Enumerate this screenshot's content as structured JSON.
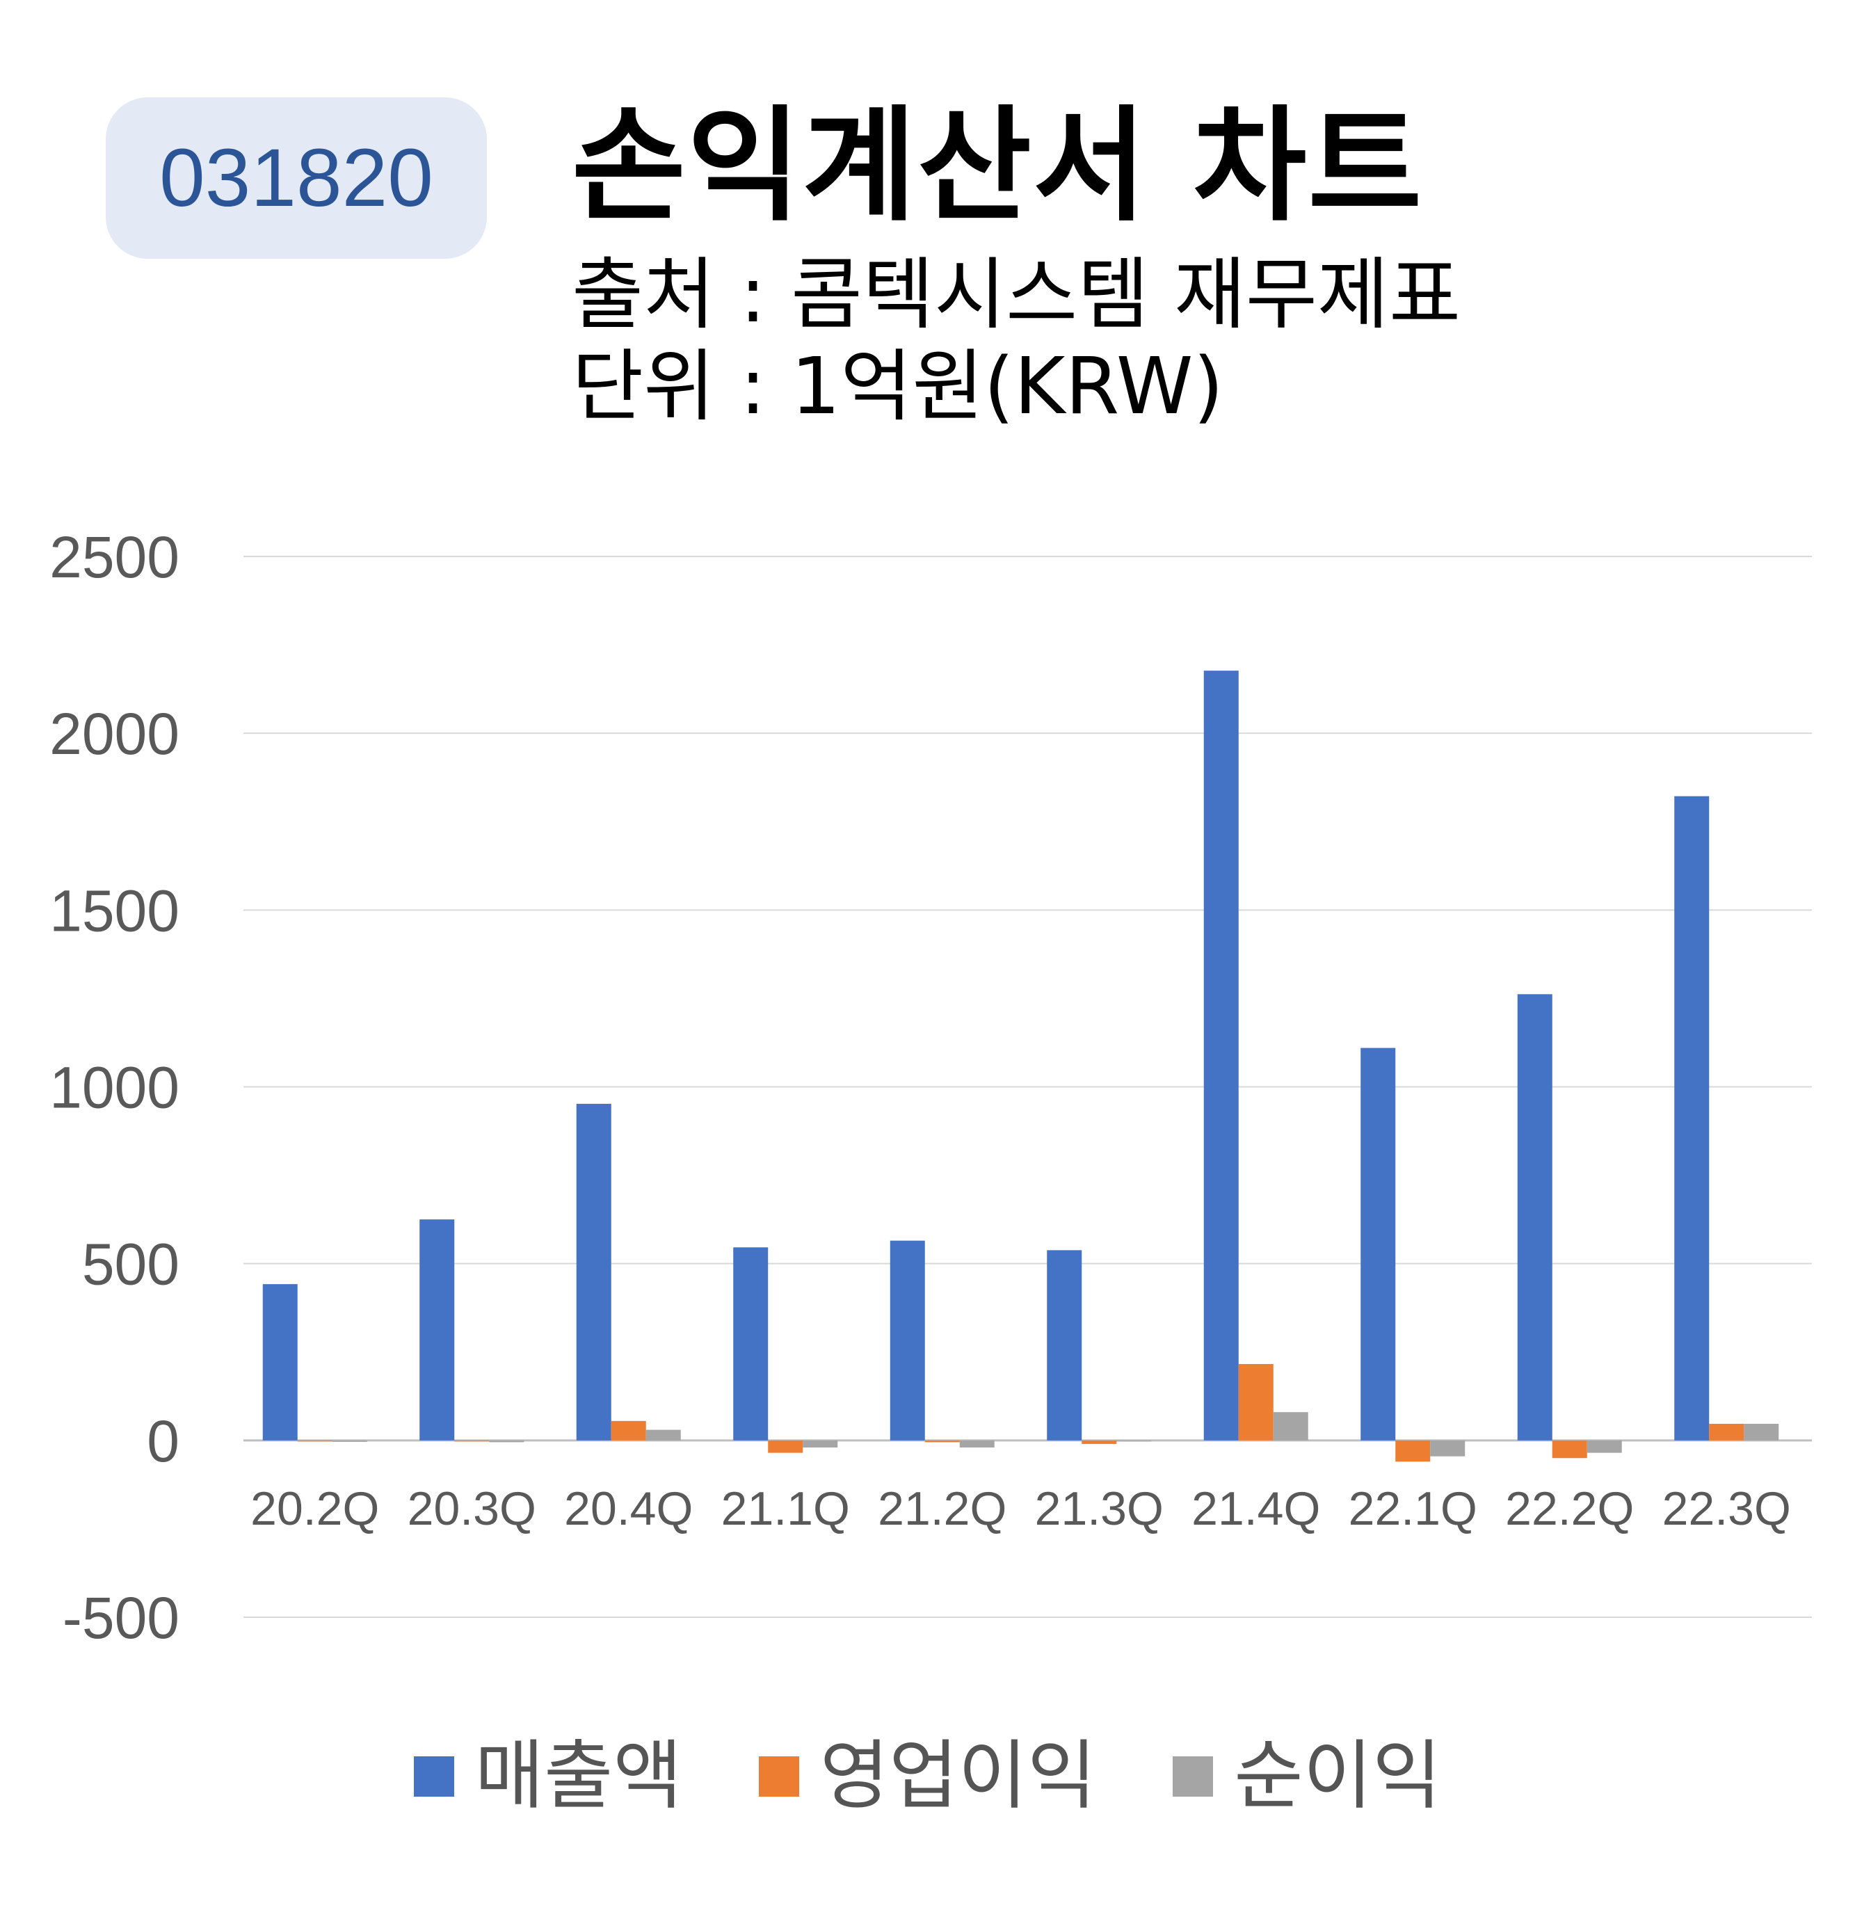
{
  "badge": {
    "code": "031820"
  },
  "header": {
    "title": "손익계산서 차트",
    "source": "출처 : 콤텍시스템 재무제표",
    "unit": "단위 : 1억원(KRW)"
  },
  "colors": {
    "revenue": "#4472c4",
    "operating_profit": "#ed7d31",
    "net_profit": "#a5a5a5",
    "grid": "#d9d9d9",
    "axis_text": "#595959"
  },
  "chart_data": {
    "type": "bar",
    "title": "",
    "xlabel": "",
    "ylabel": "",
    "ylim": [
      -500,
      2500
    ],
    "yticks": [
      2500,
      2000,
      1500,
      1000,
      500,
      0,
      -500
    ],
    "grid": true,
    "legend_position": "bottom",
    "categories": [
      "20.2Q",
      "20.3Q",
      "20.4Q",
      "21.1Q",
      "21.2Q",
      "21.3Q",
      "21.4Q",
      "22.1Q",
      "22.2Q",
      "22.3Q"
    ],
    "series": [
      {
        "name": "매출액",
        "values": [
          442,
          625,
          952,
          546,
          565,
          538,
          2177,
          1110,
          1262,
          1822
        ]
      },
      {
        "name": "영업이익",
        "values": [
          -3,
          -2,
          55,
          -35,
          -5,
          -10,
          216,
          -60,
          -50,
          47
        ]
      },
      {
        "name": "순이익",
        "values": [
          -4,
          -5,
          30,
          -20,
          -20,
          -3,
          80,
          -45,
          -35,
          47
        ]
      }
    ]
  }
}
